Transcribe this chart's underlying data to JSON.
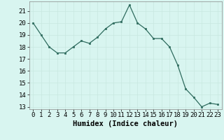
{
  "x": [
    0,
    1,
    2,
    3,
    4,
    5,
    6,
    7,
    8,
    9,
    10,
    11,
    12,
    13,
    14,
    15,
    16,
    17,
    18,
    19,
    20,
    21,
    22,
    23
  ],
  "y": [
    20.0,
    19.0,
    18.0,
    17.5,
    17.5,
    18.0,
    18.5,
    18.3,
    18.8,
    19.5,
    20.0,
    20.1,
    21.5,
    20.0,
    19.5,
    18.7,
    18.7,
    18.0,
    16.5,
    14.5,
    13.8,
    13.0,
    13.3,
    13.2
  ],
  "xlabel": "Humidex (Indice chaleur)",
  "ylim": [
    12.8,
    21.8
  ],
  "xlim": [
    -0.5,
    23.5
  ],
  "yticks": [
    13,
    14,
    15,
    16,
    17,
    18,
    19,
    20,
    21
  ],
  "xticks": [
    0,
    1,
    2,
    3,
    4,
    5,
    6,
    7,
    8,
    9,
    10,
    11,
    12,
    13,
    14,
    15,
    16,
    17,
    18,
    19,
    20,
    21,
    22,
    23
  ],
  "line_color": "#2e6b5e",
  "marker_color": "#2e6b5e",
  "bg_color": "#d8f5f0",
  "grid_color": "#c8e8e0",
  "tick_fontsize": 6.5,
  "xlabel_fontsize": 7.5
}
